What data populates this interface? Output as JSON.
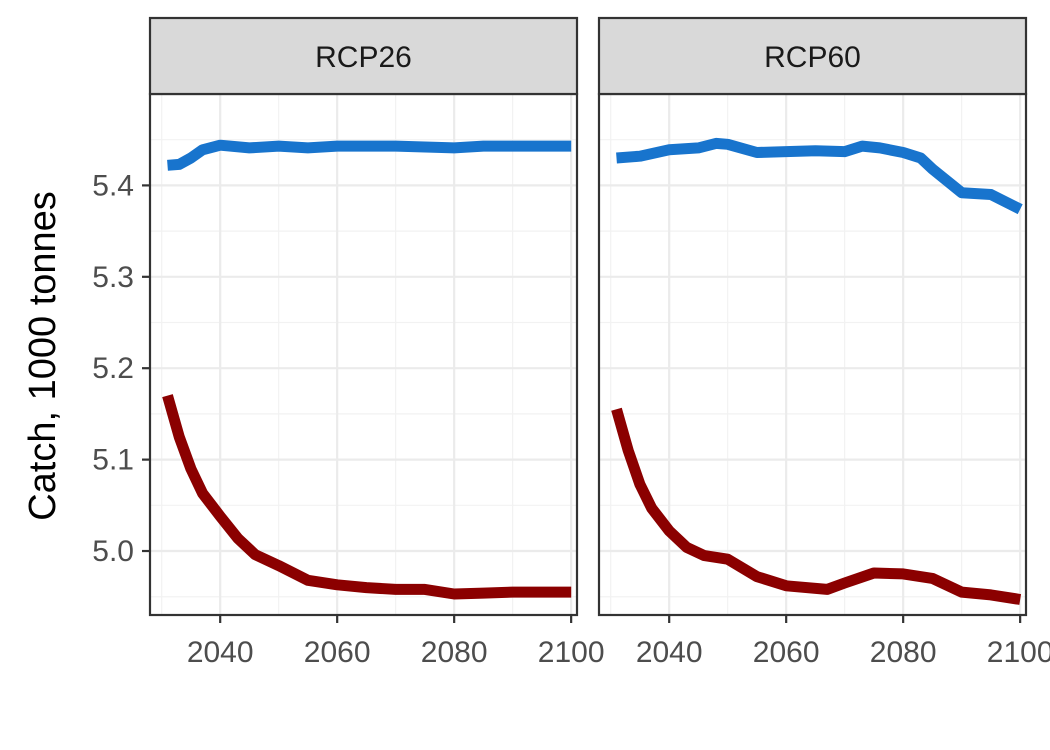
{
  "chart_data": {
    "type": "line",
    "ylabel": "Catch, 1000 tonnes",
    "xlabel": "",
    "xlim": [
      2028,
      2101
    ],
    "ylim": [
      4.93,
      5.5
    ],
    "x_ticks": [
      2040,
      2060,
      2080,
      2100
    ],
    "y_ticks": [
      5.0,
      5.1,
      5.2,
      5.3,
      5.4
    ],
    "x_tick_labels": [
      "2040",
      "2060",
      "2080",
      "2100"
    ],
    "y_tick_labels": [
      "5.0",
      "5.1",
      "5.2",
      "5.3",
      "5.4"
    ],
    "grid": true,
    "colors": {
      "blue": "#1874CD",
      "dark_red": "#8B0000"
    },
    "panels": [
      {
        "title": "RCP26",
        "series": [
          {
            "color": "#1874CD",
            "x": [
              2031,
              2033,
              2035,
              2037,
              2040,
              2045,
              2050,
              2055,
              2060,
              2070,
              2080,
              2085,
              2090,
              2100
            ],
            "y": [
              5.422,
              5.423,
              5.43,
              5.439,
              5.444,
              5.441,
              5.443,
              5.441,
              5.443,
              5.443,
              5.441,
              5.443,
              5.443,
              5.443
            ]
          },
          {
            "color": "#8B0000",
            "x": [
              2031,
              2033,
              2035,
              2037,
              2040,
              2043,
              2046,
              2050,
              2055,
              2060,
              2065,
              2070,
              2075,
              2080,
              2085,
              2090,
              2100
            ],
            "y": [
              5.17,
              5.125,
              5.09,
              5.063,
              5.038,
              5.014,
              4.996,
              4.984,
              4.968,
              4.963,
              4.96,
              4.958,
              4.958,
              4.953,
              4.954,
              4.955,
              4.955
            ]
          }
        ]
      },
      {
        "title": "RCP60",
        "series": [
          {
            "color": "#1874CD",
            "x": [
              2031,
              2035,
              2040,
              2045,
              2048,
              2050,
              2055,
              2060,
              2065,
              2070,
              2073,
              2076,
              2080,
              2083,
              2085,
              2090,
              2095,
              2100
            ],
            "y": [
              5.43,
              5.432,
              5.439,
              5.441,
              5.446,
              5.445,
              5.436,
              5.437,
              5.438,
              5.437,
              5.443,
              5.441,
              5.436,
              5.43,
              5.418,
              5.392,
              5.39,
              5.374
            ]
          },
          {
            "color": "#8B0000",
            "x": [
              2031,
              2033,
              2035,
              2037,
              2040,
              2043,
              2046,
              2050,
              2055,
              2060,
              2067,
              2070,
              2075,
              2080,
              2085,
              2090,
              2095,
              2100
            ],
            "y": [
              5.155,
              5.11,
              5.073,
              5.047,
              5.022,
              5.004,
              4.995,
              4.991,
              4.972,
              4.962,
              4.958,
              4.965,
              4.976,
              4.975,
              4.97,
              4.955,
              4.952,
              4.947
            ]
          }
        ]
      }
    ]
  }
}
